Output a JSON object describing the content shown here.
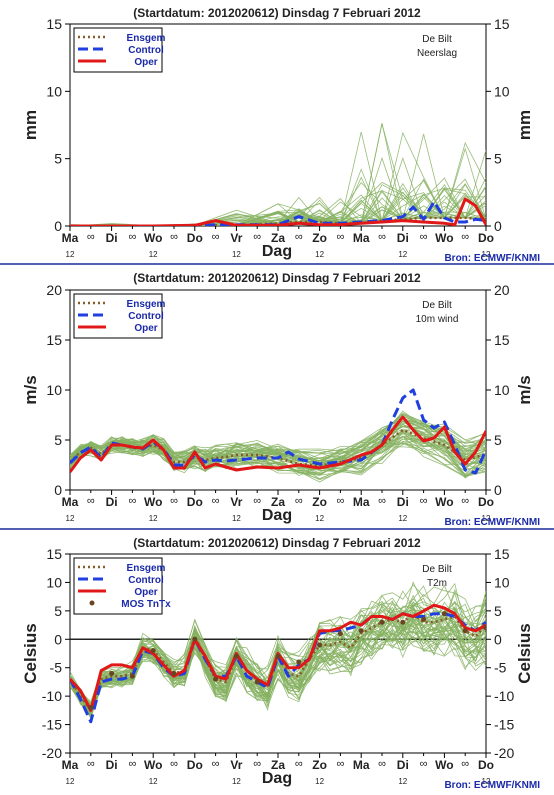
{
  "meta": {
    "header": "(Startdatum: 2012020612)   Dinsdag    7 Februari  2012",
    "source": "Bron: ECMWF/KNMI",
    "location": "De Bilt",
    "xlabel": "Dag",
    "day_labels": [
      "Ma",
      "Di",
      "Wo",
      "Do",
      "Vr",
      "Za",
      "Zo",
      "Ma",
      "Di",
      "Wo",
      "Do"
    ],
    "hour_marker": "∞",
    "hour_label": "12",
    "legend": [
      "Ensgem",
      "Control",
      "Oper",
      "MOS TnTx"
    ]
  },
  "colors": {
    "ensemble": "#86b262",
    "ensgem": "#8b5a2b",
    "control": "#1f3fe0",
    "oper": "#e01818",
    "mos": "#6b4423",
    "separator": "#1a2a9a",
    "legend_text": "#1a2aa8",
    "source_text": "#1a2aa8"
  },
  "chart_data": [
    {
      "type": "line",
      "title": "Neerslag",
      "ylabel": "mm",
      "ylim": [
        0,
        15
      ],
      "yticks": [
        0,
        5,
        10,
        15
      ],
      "x_days": [
        0,
        10
      ],
      "series": [
        {
          "name": "Ensgem",
          "x": [
            0,
            1,
            2,
            3,
            4,
            5,
            5.5,
            6,
            6.5,
            7,
            7.5,
            8,
            8.5,
            9,
            9.5,
            10
          ],
          "y": [
            0,
            0,
            0,
            0.05,
            0.05,
            0.2,
            0.3,
            0.3,
            0.2,
            0.2,
            0.4,
            0.5,
            0.6,
            0.6,
            0.6,
            0.5
          ]
        },
        {
          "name": "Control",
          "x": [
            0,
            1,
            2,
            3,
            3.5,
            4,
            5,
            5.5,
            6,
            6.5,
            7,
            7.5,
            8,
            8.25,
            8.5,
            8.75,
            9,
            9.25,
            9.5,
            9.75,
            10
          ],
          "y": [
            0,
            0,
            0,
            0,
            0.1,
            0.1,
            0.1,
            0.7,
            0.2,
            0.2,
            0.3,
            0.4,
            0.7,
            1.4,
            0.5,
            1.8,
            0.6,
            0.3,
            0.3,
            0.5,
            0.4
          ]
        },
        {
          "name": "Oper",
          "x": [
            0,
            1,
            2,
            3,
            3.5,
            4,
            5,
            5.5,
            6,
            6.5,
            7,
            7.5,
            8,
            8.5,
            9,
            9.25,
            9.5,
            9.75,
            10
          ],
          "y": [
            0,
            0,
            0,
            0.05,
            0.4,
            0.05,
            0.05,
            0.2,
            0.1,
            0.1,
            0.2,
            0.3,
            0.4,
            0.3,
            0.2,
            0.1,
            2.0,
            1.5,
            0.1
          ]
        }
      ]
    },
    {
      "type": "line",
      "title": "10m wind",
      "ylabel": "m/s",
      "ylim": [
        0,
        20
      ],
      "yticks": [
        0,
        5,
        10,
        15,
        20
      ],
      "x_days": [
        0,
        10
      ],
      "series": [
        {
          "name": "Ensgem",
          "x": [
            0,
            0.25,
            0.5,
            0.75,
            1,
            1.25,
            1.5,
            1.75,
            2,
            2.25,
            2.5,
            2.75,
            3,
            3.25,
            3.5,
            3.75,
            4,
            4.5,
            5,
            5.5,
            6,
            6.5,
            7,
            7.5,
            8,
            8.5,
            9,
            9.5,
            10
          ],
          "y": [
            2.8,
            3.8,
            4.2,
            3.6,
            4.5,
            4.5,
            4.3,
            4.2,
            4.5,
            4.0,
            2.8,
            2.8,
            3.3,
            3.0,
            3.2,
            3.3,
            3.5,
            3.5,
            3.2,
            2.6,
            2.4,
            2.8,
            3.2,
            4.5,
            6.0,
            5.2,
            4.5,
            3.0,
            3.6
          ]
        },
        {
          "name": "Control",
          "x": [
            0,
            0.25,
            0.5,
            0.75,
            1,
            1.25,
            1.5,
            1.75,
            2,
            2.25,
            2.5,
            2.75,
            3,
            3.25,
            3.5,
            3.75,
            4,
            4.5,
            5,
            5.25,
            5.5,
            6,
            6.5,
            7,
            7.5,
            7.75,
            8,
            8.25,
            8.5,
            8.75,
            9,
            9.25,
            9.5,
            9.75,
            10
          ],
          "y": [
            2.7,
            3.7,
            4.3,
            3.2,
            4.7,
            4.5,
            4.3,
            4.1,
            4.8,
            4.1,
            2.5,
            2.5,
            3.5,
            2.8,
            3.0,
            2.9,
            3.0,
            3.2,
            3.2,
            3.8,
            3.1,
            2.6,
            2.8,
            3.0,
            4.5,
            7.0,
            9.2,
            10.0,
            7.0,
            6.2,
            6.8,
            4.5,
            2.0,
            1.7,
            4.0
          ]
        },
        {
          "name": "Oper",
          "x": [
            0,
            0.25,
            0.5,
            0.75,
            1,
            1.25,
            1.5,
            1.75,
            2,
            2.25,
            2.5,
            2.75,
            3,
            3.25,
            3.5,
            4,
            4.5,
            5,
            5.5,
            6,
            6.5,
            7,
            7.25,
            7.5,
            7.75,
            8,
            8.25,
            8.5,
            8.75,
            9,
            9.25,
            9.5,
            9.75,
            10
          ],
          "y": [
            1.8,
            3.2,
            4.0,
            3.0,
            4.5,
            4.5,
            4.3,
            4.2,
            5.0,
            4.0,
            2.2,
            2.2,
            3.8,
            2.2,
            2.6,
            2.0,
            2.3,
            2.2,
            2.5,
            2.2,
            2.6,
            3.5,
            3.8,
            4.5,
            6.0,
            7.3,
            6.0,
            4.9,
            5.2,
            6.3,
            3.8,
            2.6,
            3.8,
            5.9
          ]
        }
      ]
    },
    {
      "type": "line",
      "title": "T2m",
      "ylabel": "Celsius",
      "ylim": [
        -20,
        15
      ],
      "yticks": [
        -20,
        -15,
        -10,
        -5,
        0,
        5,
        10,
        15
      ],
      "x_days": [
        0,
        10
      ],
      "series": [
        {
          "name": "Ensgem",
          "x": [
            0,
            0.25,
            0.5,
            0.75,
            1,
            1.25,
            1.5,
            1.75,
            2,
            2.25,
            2.5,
            2.75,
            3,
            3.25,
            3.5,
            3.75,
            4,
            4.25,
            4.5,
            4.75,
            5,
            5.25,
            5.5,
            5.75,
            6,
            6.25,
            6.5,
            6.75,
            7,
            7.25,
            7.5,
            7.75,
            8,
            8.25,
            8.5,
            8.75,
            9,
            9.25,
            9.5,
            9.75,
            10
          ],
          "y": [
            -7,
            -10,
            -12.5,
            -7,
            -6.5,
            -6.5,
            -6,
            -1.5,
            -2,
            -4,
            -6,
            -5.5,
            0.5,
            -3.5,
            -7,
            -7.5,
            -3,
            -5.5,
            -7,
            -8.5,
            -3,
            -6,
            -6.5,
            -3.5,
            -1,
            -1,
            -0.5,
            -1.5,
            1,
            2,
            3,
            3.5,
            3,
            4.5,
            3,
            3,
            3.5,
            4,
            1.5,
            0.5,
            2.5
          ]
        },
        {
          "name": "Control",
          "x": [
            0,
            0.25,
            0.5,
            0.75,
            1,
            1.25,
            1.5,
            1.75,
            2,
            2.25,
            2.5,
            2.75,
            3,
            3.25,
            3.5,
            3.75,
            4,
            4.25,
            4.5,
            4.75,
            5,
            5.25,
            5.5,
            5.75,
            6,
            6.25,
            6.5,
            6.75,
            7,
            7.25,
            7.5,
            7.75,
            8,
            8.25,
            8.5,
            8.75,
            9,
            9.25,
            9.5,
            9.75,
            10
          ],
          "y": [
            -7,
            -10.5,
            -14.5,
            -7.5,
            -7,
            -7,
            -6.5,
            -2,
            -2.5,
            -5,
            -6.5,
            -6,
            0,
            -3.5,
            -6.5,
            -6.5,
            -3,
            -6.5,
            -7.5,
            -8.5,
            -3,
            -6.5,
            -4.5,
            -3.5,
            1,
            1.5,
            1.5,
            2,
            2.5,
            4,
            4,
            3.5,
            4.5,
            4,
            4,
            4.5,
            4.5,
            4,
            2.5,
            1.5,
            3
          ]
        },
        {
          "name": "Oper",
          "x": [
            0,
            0.25,
            0.5,
            0.75,
            1,
            1.25,
            1.5,
            1.75,
            2,
            2.25,
            2.5,
            2.75,
            3,
            3.25,
            3.5,
            3.75,
            4,
            4.25,
            4.5,
            4.75,
            5,
            5.25,
            5.5,
            5.75,
            6,
            6.25,
            6.5,
            6.75,
            7,
            7.25,
            7.5,
            7.75,
            8,
            8.25,
            8.5,
            8.75,
            9,
            9.25,
            9.5,
            9.75,
            10
          ],
          "y": [
            -7,
            -9,
            -12.5,
            -5.5,
            -4.5,
            -4.5,
            -5,
            -1.5,
            -2.5,
            -4.5,
            -6.5,
            -5.5,
            0,
            -3,
            -6.5,
            -7,
            -2.5,
            -5.5,
            -7,
            -8,
            -2.5,
            -5,
            -5,
            -3.5,
            1.5,
            1.5,
            2,
            3,
            2.5,
            4,
            4,
            3.5,
            4.5,
            4,
            5,
            6,
            5.5,
            4.5,
            2,
            1.5,
            2.5
          ]
        },
        {
          "name": "MOS TnTx",
          "x": [
            0.5,
            1,
            1.5,
            2,
            2.5,
            3,
            3.5,
            4,
            4.5,
            5,
            5.5,
            6,
            6.5,
            7,
            7.5,
            8,
            8.5,
            9,
            9.5,
            10
          ],
          "y": [
            -12,
            -6,
            -6.5,
            -2,
            -6,
            0,
            -7,
            -3,
            -7.5,
            -3,
            -4,
            -1,
            1,
            1.5,
            3,
            3,
            3.5,
            4.5,
            1.5,
            2
          ]
        }
      ]
    }
  ]
}
